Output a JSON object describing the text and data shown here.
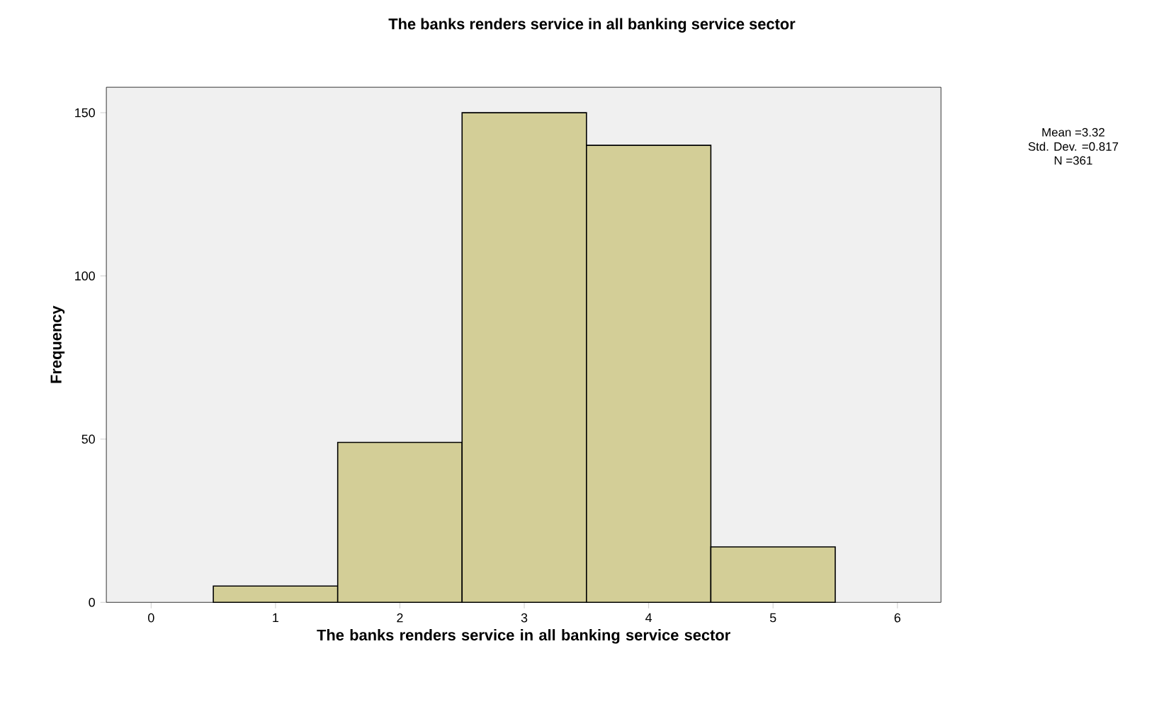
{
  "chart_data": {
    "type": "histogram",
    "title": "The banks renders service in all banking service sector",
    "xlabel": "The banks renders service in all banking service sector",
    "ylabel": "Frequency",
    "bins": [
      0.5,
      1.5,
      2.5,
      3.5,
      4.5,
      5.5
    ],
    "values": [
      5,
      49,
      150,
      140,
      17
    ],
    "color": "#d3ce97",
    "xlim": [
      -0.36,
      6.35
    ],
    "ylim": [
      0,
      157.8
    ],
    "xticks": [
      0,
      1,
      2,
      3,
      4,
      5,
      6
    ],
    "yticks": [
      0,
      50,
      100,
      150
    ],
    "grid": false,
    "annotations": [
      "Mean =3.32",
      "Std. Dev. =0.817",
      "N =361"
    ]
  }
}
